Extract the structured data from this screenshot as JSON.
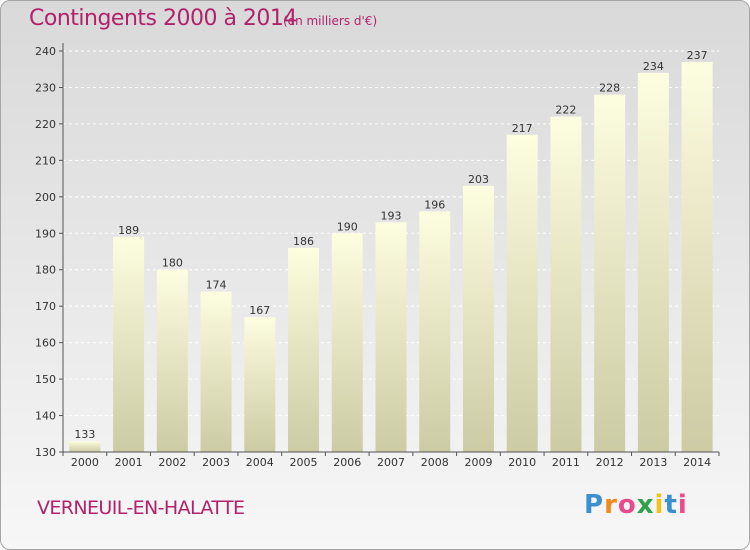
{
  "header": {
    "title": "Contingents 2000 à 2014",
    "subtitle": "(en milliers d'€)"
  },
  "footer": {
    "commune": "VERNEUIL-EN-HALATTE",
    "logo_letters": [
      "P",
      "r",
      "o",
      "x",
      "i",
      "t",
      "i"
    ],
    "logo_colors": [
      "#3a8fd1",
      "#f08a1c",
      "#e94b8a",
      "#2fa34a",
      "#f2c21b",
      "#3a8fd1",
      "#e94b8a"
    ]
  },
  "colors": {
    "title": "#b2226a",
    "bar_top": "#fdfde0",
    "bar_bottom": "#c9c9a2"
  },
  "chart_data": {
    "type": "bar",
    "categories": [
      "2000",
      "2001",
      "2002",
      "2003",
      "2004",
      "2005",
      "2006",
      "2007",
      "2008",
      "2009",
      "2010",
      "2011",
      "2012",
      "2013",
      "2014"
    ],
    "values": [
      133,
      189,
      180,
      174,
      167,
      186,
      190,
      193,
      196,
      203,
      217,
      222,
      228,
      234,
      237
    ],
    "ylim": [
      130,
      240
    ],
    "yticks": [
      130,
      140,
      150,
      160,
      170,
      180,
      190,
      200,
      210,
      220,
      230,
      240
    ],
    "grid": true,
    "title": "Contingents 2000 à 2014",
    "xlabel": "",
    "ylabel": ""
  }
}
